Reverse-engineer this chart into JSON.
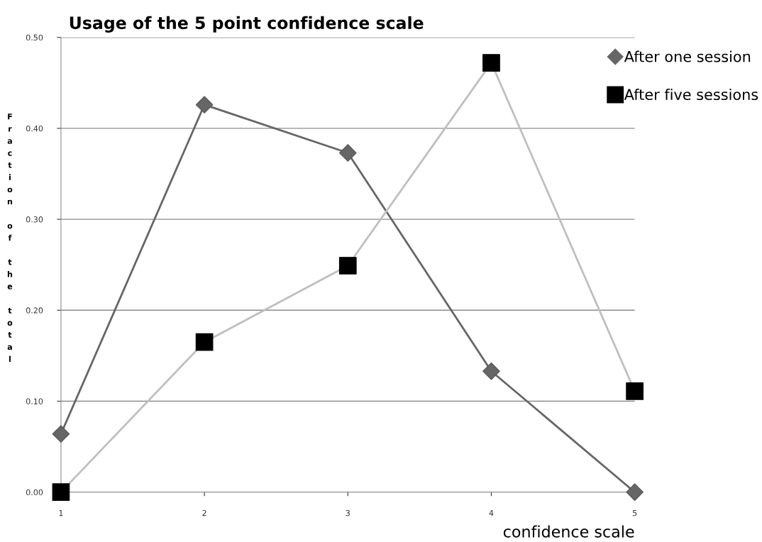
{
  "chart_data": {
    "type": "line",
    "title": "Usage of the 5 point confidence scale",
    "xlabel": "confidence scale",
    "ylabel": "Fraction of the total",
    "x": [
      1,
      2,
      3,
      4,
      5
    ],
    "series": [
      {
        "name": "After one session",
        "color": "#666666",
        "marker": "diamond",
        "values": [
          0.064,
          0.426,
          0.373,
          0.133,
          0.0
        ]
      },
      {
        "name": "After five sessions",
        "color": "#bfbfbf",
        "colors": [
          "#000000",
          "#000000",
          "#000000",
          "#000000",
          "#000000"
        ],
        "marker": "square",
        "values": [
          0.0,
          0.165,
          0.249,
          0.472,
          0.111
        ]
      }
    ],
    "xlim": [
      1,
      5
    ],
    "xticks": [
      1,
      2,
      3,
      4,
      5
    ],
    "ylim": [
      0,
      0.5
    ],
    "yticks": [
      {
        "value": 0,
        "label": "0.00"
      },
      {
        "value": 0.1,
        "label": "0.10"
      },
      {
        "value": 0.2,
        "label": "0.20"
      },
      {
        "value": 0.3,
        "label": "0.30"
      },
      {
        "value": 0.4,
        "label": "0.40"
      },
      {
        "value": 0.5,
        "label": "0.50"
      }
    ],
    "grid": "y",
    "legend": "top right",
    "line_style": "solid"
  }
}
